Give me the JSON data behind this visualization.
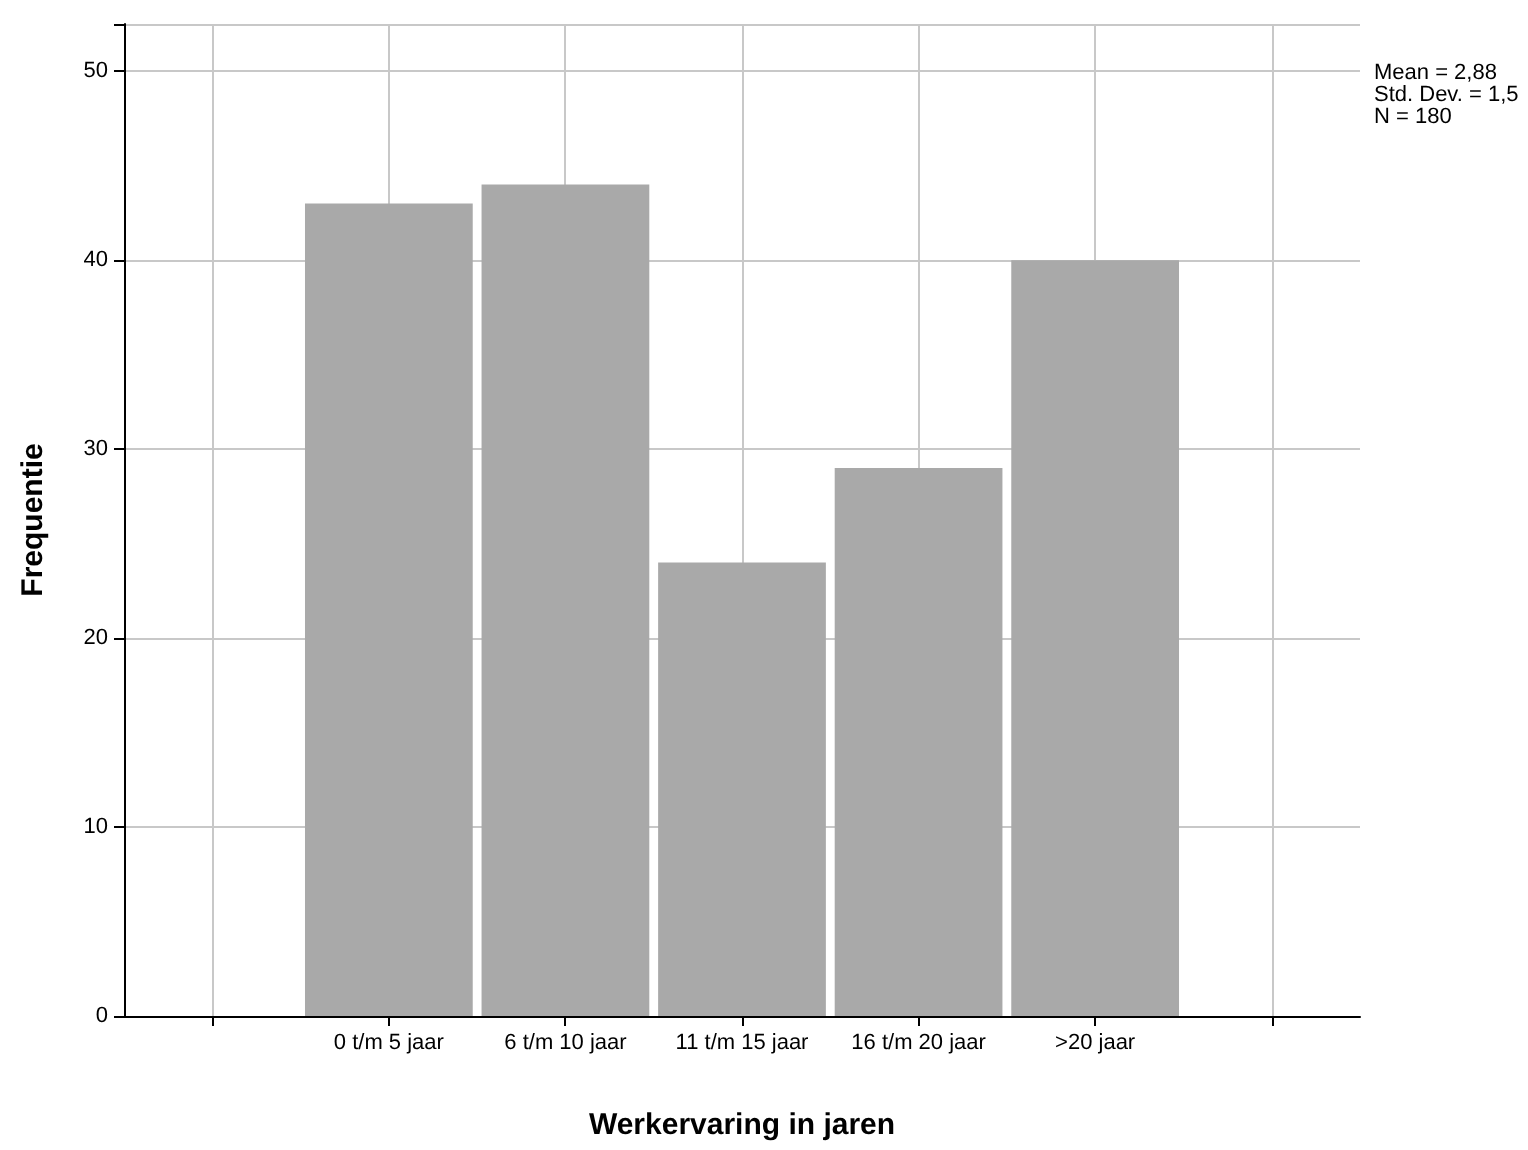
{
  "chart_data": {
    "type": "bar",
    "xlabel": "Werkervaring in jaren",
    "ylabel": "Frequentie",
    "categories": [
      null,
      "0 t/m 5 jaar",
      "6 t/m 10 jaar",
      "11 t/m 15 jaar",
      "16 t/m 20 jaar",
      ">20 jaar",
      null
    ],
    "values": [
      null,
      43,
      44,
      24,
      29,
      40,
      null
    ],
    "color": "#a9a9a9",
    "ylim": [
      0,
      52.5
    ],
    "yticks": [
      0,
      10,
      20,
      30,
      40,
      50
    ],
    "grid": true,
    "annotations": [
      "Mean = 2,88",
      "Std. Dev. = 1,5",
      "N = 180"
    ]
  }
}
